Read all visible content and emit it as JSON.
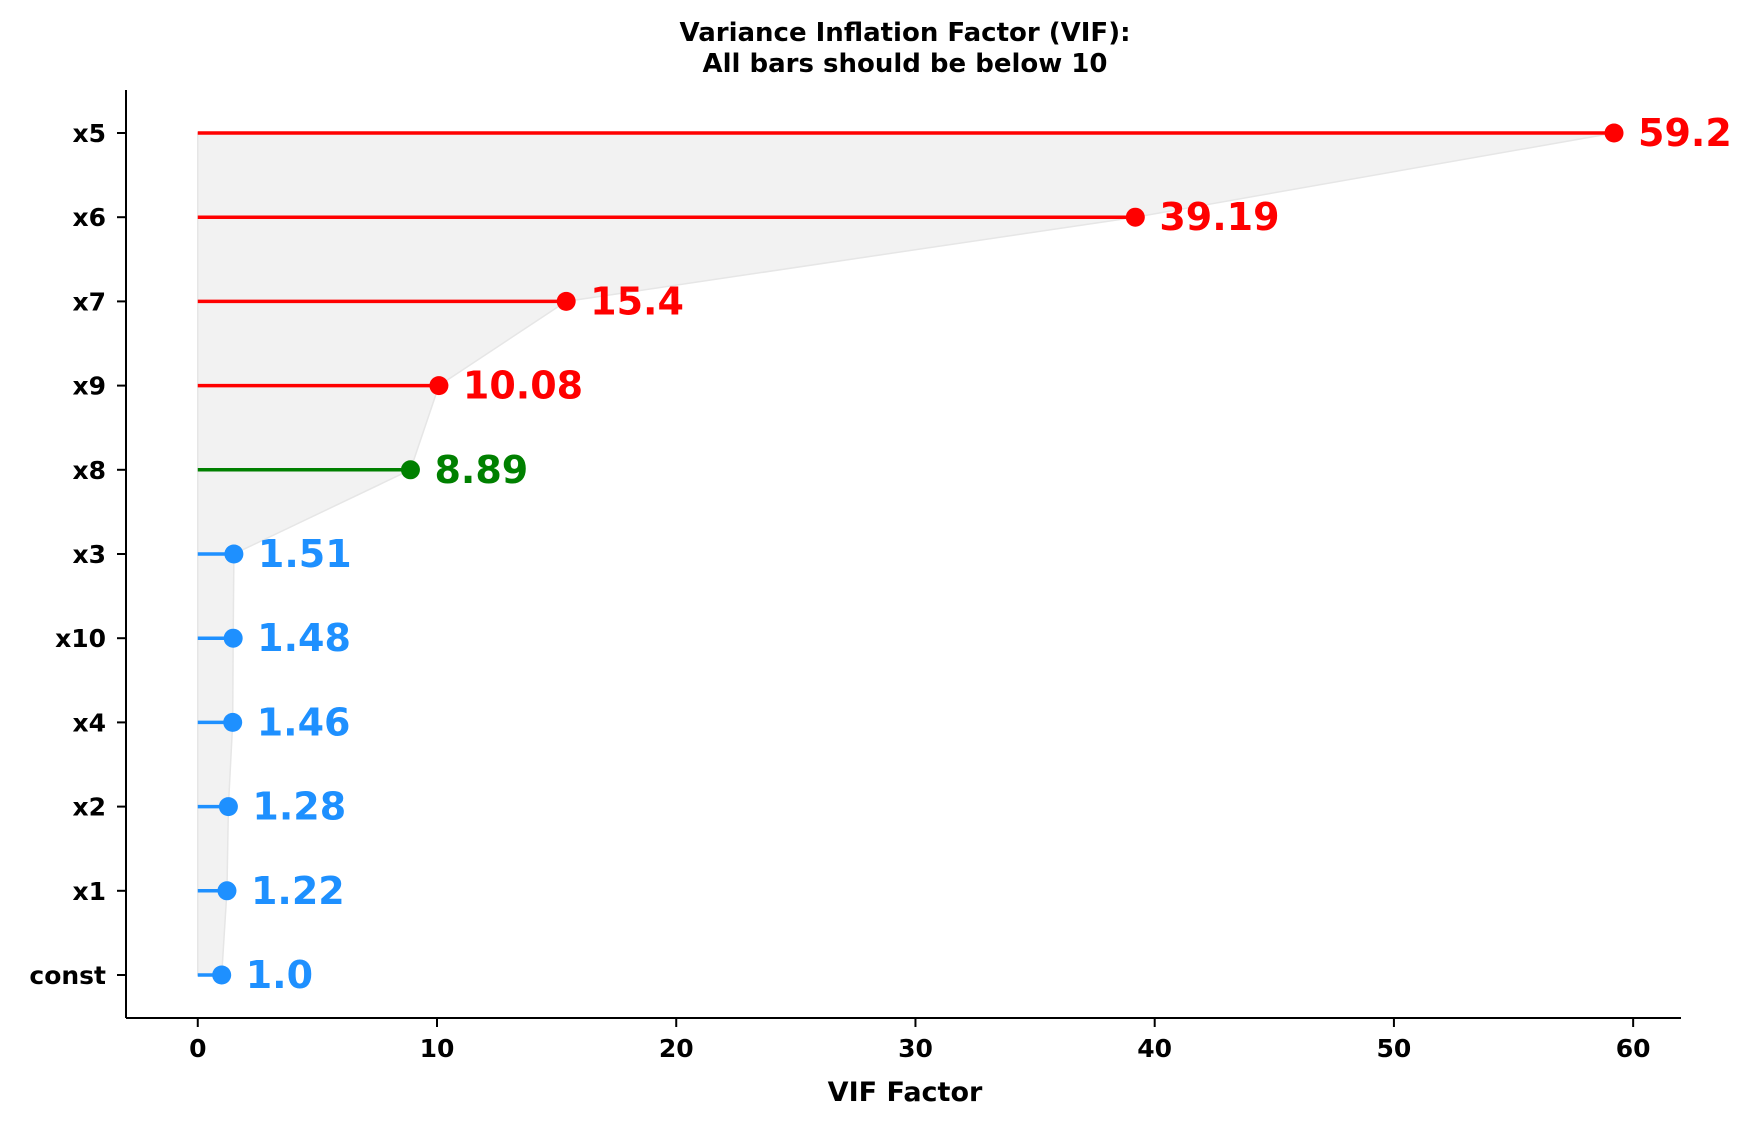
{
  "chart_data": {
    "type": "lollipop",
    "title_lines": [
      "Variance Inflation Factor (VIF):",
      "All bars should be below 10"
    ],
    "xlabel": "VIF Factor",
    "ylabel": "",
    "xlim": [
      -3,
      62
    ],
    "xticks": [
      0,
      10,
      20,
      30,
      40,
      50,
      60
    ],
    "threshold": 10,
    "grid": false,
    "categories": [
      "x5",
      "x6",
      "x7",
      "x9",
      "x8",
      "x3",
      "x10",
      "x4",
      "x2",
      "x1",
      "const"
    ],
    "values": [
      59.2,
      39.19,
      15.4,
      10.08,
      8.89,
      1.51,
      1.48,
      1.46,
      1.28,
      1.22,
      1.0
    ],
    "value_labels": [
      "59.2",
      "39.19",
      "15.4",
      "10.08",
      "8.89",
      "1.51",
      "1.48",
      "1.46",
      "1.28",
      "1.22",
      "1.0"
    ],
    "colors": {
      "above_threshold": "#ff0000",
      "near_threshold": "#008000",
      "low": "#1e90ff",
      "fill": "#f2f2f2"
    }
  }
}
